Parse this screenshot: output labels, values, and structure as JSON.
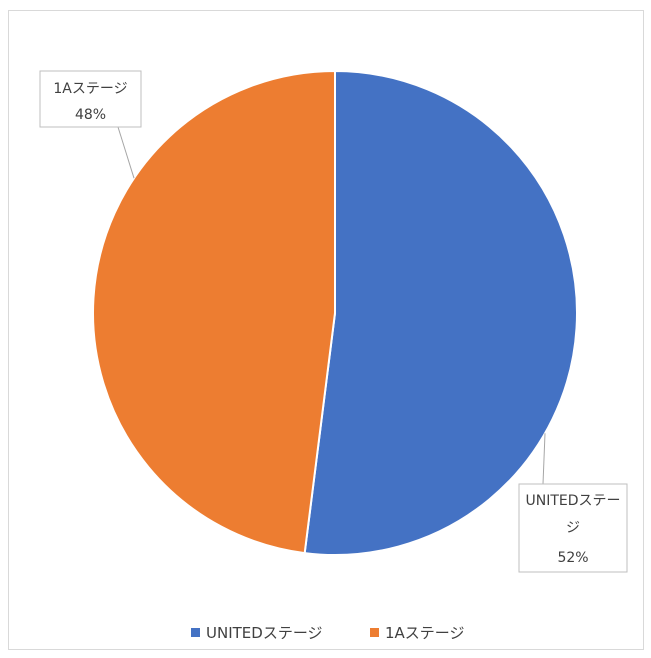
{
  "chart_data": {
    "type": "pie",
    "title": "",
    "slices": [
      {
        "name": "UNITEDステージ",
        "value": 52,
        "label_lines": [
          "UNITEDステー",
          "ジ",
          "52%"
        ],
        "color": "#4472C4"
      },
      {
        "name": "1Aステージ",
        "value": 48,
        "label_lines": [
          "1Aステージ",
          "48%"
        ],
        "color": "#ED7D31"
      }
    ],
    "legend": {
      "position": "bottom",
      "entries": [
        "UNITEDステージ",
        "1Aステージ"
      ]
    },
    "start_angle": "12 o'clock",
    "direction": "clockwise"
  }
}
